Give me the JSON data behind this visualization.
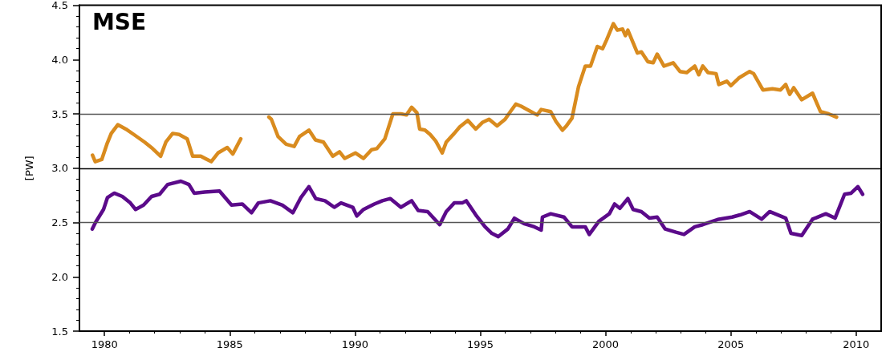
{
  "chart_data": {
    "type": "line",
    "title": "MSE",
    "ylabel": "[PW]",
    "xlim": [
      1979,
      2011
    ],
    "xticks": [
      1980,
      1985,
      1990,
      1995,
      2000,
      2005,
      2010
    ],
    "ylim": [
      1.5,
      4.5
    ],
    "yticks": [
      {
        "value": 1.5,
        "label": "1.5"
      },
      {
        "value": 2,
        "label": "2.0"
      },
      {
        "value": 2.5,
        "label": "2.5"
      },
      {
        "value": 3,
        "label": "3.0"
      },
      {
        "value": 3.5,
        "label": "3.5"
      },
      {
        "value": 4,
        "label": "4.0"
      },
      {
        "value": 4.5,
        "label": "4.5"
      }
    ],
    "marker": "none",
    "line_style": "solid",
    "ref_lines": [
      {
        "axis": "y",
        "value": 2.5,
        "label": null,
        "color": "#555555"
      },
      {
        "axis": "y",
        "value": 3.0,
        "label": null,
        "color": "#000000"
      },
      {
        "axis": "y",
        "value": 3.5,
        "label": null,
        "color": "#555555"
      }
    ],
    "series": [
      {
        "color": "#d98b1e",
        "x": [
          1979.52,
          1979.63,
          1979.89,
          1980.11,
          1980.27,
          1980.53,
          1980.85,
          1981.17,
          1981.6,
          1981.92,
          1982.24,
          1982.45,
          1982.72,
          1982.98,
          1983.3,
          1983.52,
          1983.84,
          1984.26,
          1984.53,
          1984.9,
          1985.12,
          1985.44,
          1986.0,
          1986.56,
          1986.66,
          1986.93,
          1987.25,
          1987.57,
          1987.78,
          1988.16,
          1988.42,
          1988.74,
          1989.11,
          1989.38,
          1989.59,
          1990.02,
          1990.34,
          1990.66,
          1990.87,
          1991.19,
          1991.51,
          1991.83,
          1992.05,
          1992.26,
          1992.47,
          1992.58,
          1992.79,
          1993.0,
          1993.22,
          1993.48,
          1993.64,
          1993.96,
          1994.18,
          1994.5,
          1994.82,
          1995.08,
          1995.35,
          1995.67,
          1995.99,
          1996.2,
          1996.42,
          1996.63,
          1996.95,
          1997.27,
          1997.43,
          1997.81,
          1998.02,
          1998.28,
          1998.44,
          1998.66,
          1998.92,
          1999.19,
          1999.4,
          1999.67,
          1999.88,
          2000.04,
          2000.31,
          2000.47,
          2000.68,
          2000.79,
          2000.89,
          2001.27,
          2001.43,
          2001.69,
          2001.9,
          2002.06,
          2002.33,
          2002.7,
          2002.97,
          2003.24,
          2003.56,
          2003.72,
          2003.88,
          2004.09,
          2004.41,
          2004.52,
          2004.84,
          2005.0,
          2005.32,
          2005.75,
          2005.91,
          2006.28,
          2006.66,
          2006.98,
          2007.19,
          2007.35,
          2007.51,
          2007.83,
          2008.26,
          2008.58,
          2008.9,
          2009.22
        ],
        "values": [
          3.12,
          3.06,
          3.08,
          3.23,
          3.32,
          3.4,
          3.36,
          3.31,
          3.24,
          3.18,
          3.11,
          3.24,
          3.32,
          3.31,
          3.27,
          3.11,
          3.11,
          3.06,
          3.14,
          3.19,
          3.13,
          3.27,
          null,
          3.47,
          3.45,
          3.29,
          3.22,
          3.2,
          3.29,
          3.35,
          3.26,
          3.24,
          3.11,
          3.15,
          3.09,
          3.14,
          3.09,
          3.17,
          3.18,
          3.27,
          3.5,
          3.5,
          3.49,
          3.56,
          3.51,
          3.36,
          3.35,
          3.31,
          3.25,
          3.14,
          3.24,
          3.32,
          3.38,
          3.44,
          3.36,
          3.42,
          3.45,
          3.39,
          3.45,
          3.52,
          3.59,
          3.57,
          3.53,
          3.49,
          3.54,
          3.52,
          3.43,
          3.35,
          3.39,
          3.46,
          3.75,
          3.94,
          3.94,
          4.12,
          4.1,
          4.18,
          4.33,
          4.27,
          4.28,
          4.22,
          4.27,
          4.06,
          4.07,
          3.98,
          3.97,
          4.05,
          3.94,
          3.97,
          3.89,
          3.88,
          3.94,
          3.86,
          3.94,
          3.88,
          3.87,
          3.77,
          3.8,
          3.76,
          3.83,
          3.89,
          3.87,
          3.72,
          3.73,
          3.72,
          3.77,
          3.68,
          3.74,
          3.63,
          3.69,
          3.52,
          3.5,
          3.47
        ]
      },
      {
        "color": "#5b0a8a",
        "x": [
          1979.51,
          1979.64,
          1979.96,
          1980.12,
          1980.39,
          1980.71,
          1981.03,
          1981.24,
          1981.56,
          1981.88,
          1982.2,
          1982.52,
          1983.05,
          1983.37,
          1983.58,
          1984.0,
          1984.59,
          1985.07,
          1985.5,
          1985.87,
          1986.14,
          1986.62,
          1987.1,
          1987.52,
          1987.84,
          1988.16,
          1988.43,
          1988.8,
          1989.17,
          1989.44,
          1989.91,
          1990.07,
          1990.34,
          1990.77,
          1991.09,
          1991.41,
          1991.83,
          1992.26,
          1992.52,
          1992.9,
          1993.38,
          1993.64,
          1993.96,
          1994.28,
          1994.44,
          1994.82,
          1995.19,
          1995.46,
          1995.72,
          1996.1,
          1996.36,
          1996.74,
          1997.16,
          1997.43,
          1997.48,
          1997.81,
          1998.34,
          1998.66,
          1999.19,
          1999.35,
          1999.73,
          2000.15,
          2000.36,
          2000.57,
          2000.89,
          2001.1,
          2001.43,
          2001.75,
          2002.06,
          2002.38,
          2002.81,
          2003.13,
          2003.56,
          2003.88,
          2004.52,
          2005.05,
          2005.37,
          2005.75,
          2006.23,
          2006.55,
          2007.19,
          2007.4,
          2007.83,
          2008.26,
          2008.79,
          2009.16,
          2009.54,
          2009.8,
          2010.07,
          2010.26
        ],
        "values": [
          2.44,
          2.5,
          2.62,
          2.73,
          2.77,
          2.74,
          2.68,
          2.62,
          2.66,
          2.74,
          2.76,
          2.85,
          2.88,
          2.85,
          2.77,
          2.78,
          2.79,
          2.66,
          2.67,
          2.59,
          2.68,
          2.7,
          2.66,
          2.59,
          2.73,
          2.83,
          2.72,
          2.7,
          2.64,
          2.68,
          2.64,
          2.56,
          2.62,
          2.67,
          2.7,
          2.72,
          2.64,
          2.7,
          2.61,
          2.6,
          2.48,
          2.6,
          2.68,
          2.68,
          2.7,
          2.57,
          2.46,
          2.4,
          2.37,
          2.44,
          2.54,
          2.49,
          2.46,
          2.43,
          2.55,
          2.58,
          2.55,
          2.46,
          2.46,
          2.39,
          2.51,
          2.58,
          2.67,
          2.63,
          2.72,
          2.62,
          2.6,
          2.54,
          2.55,
          2.44,
          2.41,
          2.39,
          2.46,
          2.48,
          2.53,
          2.55,
          2.57,
          2.6,
          2.53,
          2.6,
          2.54,
          2.4,
          2.38,
          2.53,
          2.58,
          2.54,
          2.76,
          2.77,
          2.83,
          2.76
        ]
      }
    ]
  }
}
